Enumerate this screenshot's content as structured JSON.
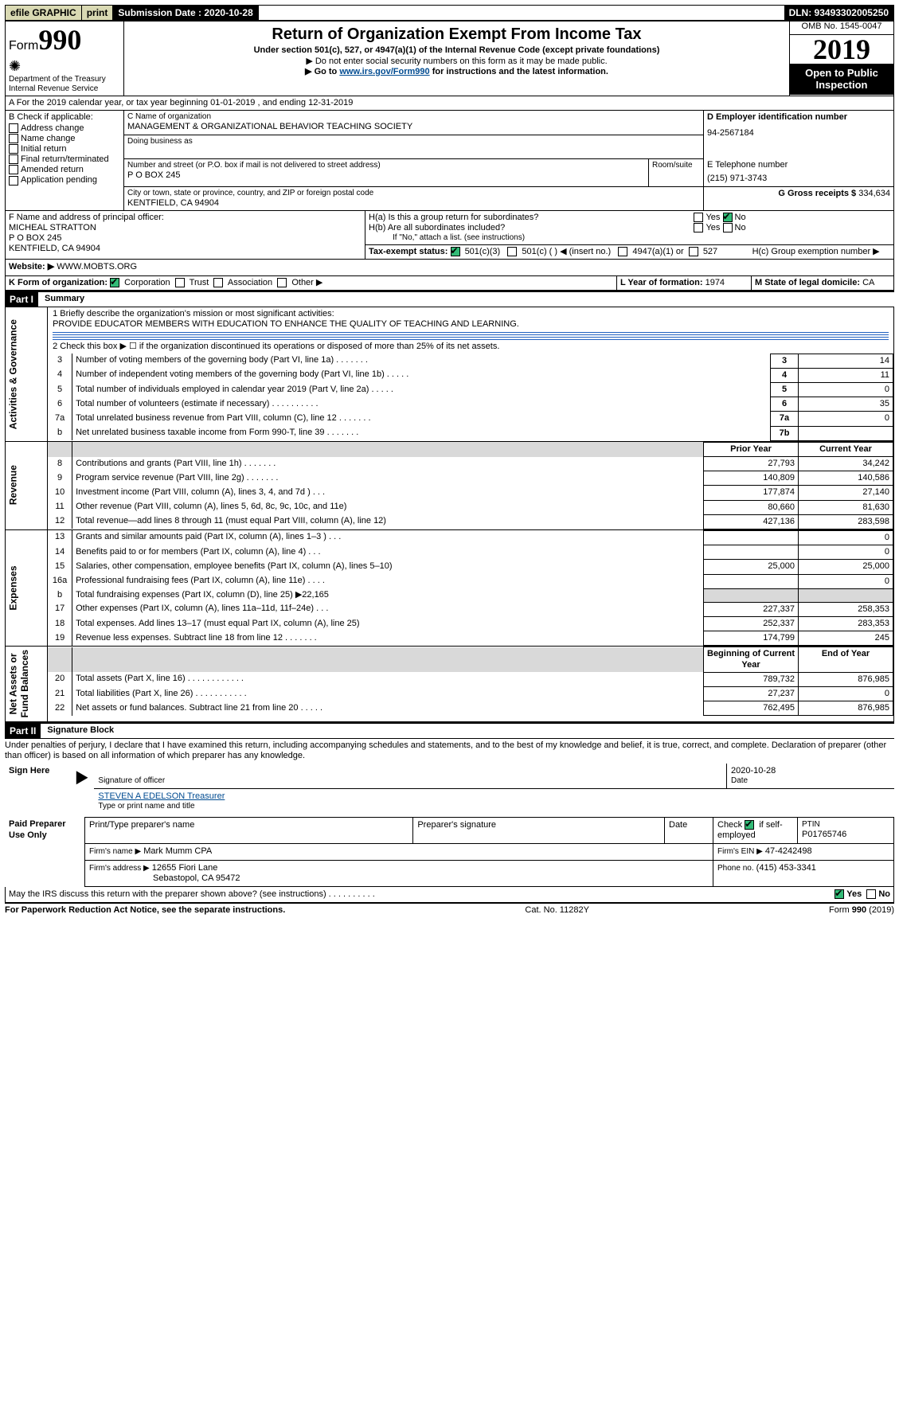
{
  "topbar": {
    "efile": "efile GRAPHIC",
    "print": "print",
    "subLabel": "Submission Date : 2020-10-28",
    "dln": "DLN: 93493302005250"
  },
  "header": {
    "formLabel": "Form",
    "form990": "990",
    "dept": "Department of the Treasury\nInternal Revenue Service",
    "title": "Return of Organization Exempt From Income Tax",
    "sub1": "Under section 501(c), 527, or 4947(a)(1) of the Internal Revenue Code (except private foundations)",
    "sub2": "▶ Do not enter social security numbers on this form as it may be made public.",
    "sub3pre": "▶ Go to ",
    "sub3link": "www.irs.gov/Form990",
    "sub3post": " for instructions and the latest information.",
    "omb": "OMB No. 1545-0047",
    "year": "2019",
    "openpub": "Open to Public Inspection"
  },
  "A": {
    "line": "A For the 2019 calendar year, or tax year beginning 01-01-2019     , and ending 12-31-2019"
  },
  "B": {
    "label": "B Check if applicable:",
    "items": [
      "Address change",
      "Name change",
      "Initial return",
      "Final return/terminated",
      "Amended return",
      "Application pending"
    ]
  },
  "C": {
    "nameLbl": "C Name of organization",
    "name": "MANAGEMENT & ORGANIZATIONAL BEHAVIOR TEACHING SOCIETY",
    "dbaLbl": "Doing business as",
    "addrLbl": "Number and street (or P.O. box if mail is not delivered to street address)",
    "roomLbl": "Room/suite",
    "addr": "P O BOX 245",
    "cityLbl": "City or town, state or province, country, and ZIP or foreign postal code",
    "city": "KENTFIELD, CA  94904"
  },
  "D": {
    "lbl": "D Employer identification number",
    "val": "94-2567184"
  },
  "E": {
    "lbl": "E Telephone number",
    "val": "(215) 971-3743"
  },
  "G": {
    "lbl": "G Gross receipts $",
    "val": "334,634"
  },
  "F": {
    "lbl": "F  Name and address of principal officer:",
    "name": "MICHEAL STRATTON",
    "addr1": "P O BOX 245",
    "addr2": "KENTFIELD, CA  94904"
  },
  "H": {
    "a": "H(a)  Is this a group return for subordinates?",
    "b": "H(b)  Are all subordinates included?",
    "bnote": "If \"No,\" attach a list. (see instructions)",
    "c": "H(c)  Group exemption number ▶",
    "yes": "Yes",
    "no": "No"
  },
  "I": {
    "lbl": "Tax-exempt status:",
    "o1": "501(c)(3)",
    "o2": "501(c) (   ) ◀ (insert no.)",
    "o3": "4947(a)(1) or",
    "o4": "527"
  },
  "J": {
    "lbl": "Website: ▶",
    "val": "WWW.MOBTS.ORG"
  },
  "K": {
    "lbl": "K Form of organization:",
    "o1": "Corporation",
    "o2": "Trust",
    "o3": "Association",
    "o4": "Other ▶"
  },
  "L": {
    "lbl": "L Year of formation:",
    "val": "1974"
  },
  "M": {
    "lbl": "M State of legal domicile:",
    "val": "CA"
  },
  "part1": {
    "hdr": "Part I",
    "title": "Summary",
    "l1lbl": "1  Briefly describe the organization's mission or most significant activities:",
    "l1val": "PROVIDE EDUCATOR MEMBERS WITH EDUCATION TO ENHANCE THE QUALITY OF TEACHING AND LEARNING.",
    "l2": "2    Check this box ▶ ☐  if the organization discontinued its operations or disposed of more than 25% of its net assets.",
    "rows_ag": [
      {
        "n": "3",
        "d": "Number of voting members of the governing body (Part VI, line 1a)  .    .    .    .    .    .    .",
        "b": "3",
        "v": "14"
      },
      {
        "n": "4",
        "d": "Number of independent voting members of the governing body (Part VI, line 1b)  .    .    .    .    .",
        "b": "4",
        "v": "11"
      },
      {
        "n": "5",
        "d": "Total number of individuals employed in calendar year 2019 (Part V, line 2a)  .    .    .    .    .",
        "b": "5",
        "v": "0"
      },
      {
        "n": "6",
        "d": "Total number of volunteers (estimate if necessary)  .    .    .    .    .    .    .    .    .    .",
        "b": "6",
        "v": "35"
      },
      {
        "n": "7a",
        "d": "Total unrelated business revenue from Part VIII, column (C), line 12  .    .    .    .    .    .    .",
        "b": "7a",
        "v": "0"
      },
      {
        "n": "b",
        "d": "Net unrelated business taxable income from Form 990-T, line 39  .    .    .    .    .    .    .",
        "b": "7b",
        "v": ""
      }
    ],
    "colhdr": {
      "py": "Prior Year",
      "cy": "Current Year"
    },
    "rows_rev": [
      {
        "n": "8",
        "d": "Contributions and grants (Part VIII, line 1h)  .    .    .    .    .    .    .",
        "py": "27,793",
        "cy": "34,242"
      },
      {
        "n": "9",
        "d": "Program service revenue (Part VIII, line 2g)  .    .    .    .    .    .    .",
        "py": "140,809",
        "cy": "140,586"
      },
      {
        "n": "10",
        "d": "Investment income (Part VIII, column (A), lines 3, 4, and 7d )  .    .    .",
        "py": "177,874",
        "cy": "27,140"
      },
      {
        "n": "11",
        "d": "Other revenue (Part VIII, column (A), lines 5, 6d, 8c, 9c, 10c, and 11e)",
        "py": "80,660",
        "cy": "81,630"
      },
      {
        "n": "12",
        "d": "Total revenue—add lines 8 through 11 (must equal Part VIII, column (A), line 12)",
        "py": "427,136",
        "cy": "283,598"
      }
    ],
    "rows_exp": [
      {
        "n": "13",
        "d": "Grants and similar amounts paid (Part IX, column (A), lines 1–3 )  .    .    .",
        "py": "",
        "cy": "0"
      },
      {
        "n": "14",
        "d": "Benefits paid to or for members (Part IX, column (A), line 4)  .    .    .",
        "py": "",
        "cy": "0"
      },
      {
        "n": "15",
        "d": "Salaries, other compensation, employee benefits (Part IX, column (A), lines 5–10)",
        "py": "25,000",
        "cy": "25,000"
      },
      {
        "n": "16a",
        "d": "Professional fundraising fees (Part IX, column (A), line 11e)  .    .    .    .",
        "py": "",
        "cy": "0"
      },
      {
        "n": "b",
        "d": "Total fundraising expenses (Part IX, column (D), line 25) ▶22,165",
        "py": "__shade__",
        "cy": "__shade__"
      },
      {
        "n": "17",
        "d": "Other expenses (Part IX, column (A), lines 11a–11d, 11f–24e)  .    .    .",
        "py": "227,337",
        "cy": "258,353"
      },
      {
        "n": "18",
        "d": "Total expenses. Add lines 13–17 (must equal Part IX, column (A), line 25)",
        "py": "252,337",
        "cy": "283,353"
      },
      {
        "n": "19",
        "d": "Revenue less expenses. Subtract line 18 from line 12  .    .    .    .    .    .    .",
        "py": "174,799",
        "cy": "245"
      }
    ],
    "colhdr2": {
      "py": "Beginning of Current Year",
      "cy": "End of Year"
    },
    "rows_na": [
      {
        "n": "20",
        "d": "Total assets (Part X, line 16)  .    .    .    .    .    .    .    .    .    .    .    .",
        "py": "789,732",
        "cy": "876,985"
      },
      {
        "n": "21",
        "d": "Total liabilities (Part X, line 26)  .    .    .    .    .    .    .    .    .    .    .",
        "py": "27,237",
        "cy": "0"
      },
      {
        "n": "22",
        "d": "Net assets or fund balances. Subtract line 21 from line 20  .    .    .    .    .",
        "py": "762,495",
        "cy": "876,985"
      }
    ],
    "vlabels": {
      "ag": "Activities & Governance",
      "rev": "Revenue",
      "exp": "Expenses",
      "na": "Net Assets or\nFund Balances"
    }
  },
  "part2": {
    "hdr": "Part II",
    "title": "Signature Block",
    "decl": "Under penalties of perjury, I declare that I have examined this return, including accompanying schedules and statements, and to the best of my knowledge and belief, it is true, correct, and complete. Declaration of preparer (other than officer) is based on all information of which preparer has any knowledge."
  },
  "sign": {
    "here": "Sign Here",
    "sigoff": "Signature of officer",
    "date": "2020-10-28",
    "dateLbl": "Date",
    "name": "STEVEN A EDELSON  Treasurer",
    "nameLbl": "Type or print name and title"
  },
  "paid": {
    "lbl": "Paid Preparer Use Only",
    "h1": "Print/Type preparer's name",
    "h2": "Preparer's signature",
    "h3": "Date",
    "h4pre": "Check",
    "h4": "if self-employed",
    "h5": "PTIN",
    "ptin": "P01765746",
    "firmLbl": "Firm's name    ▶",
    "firm": "Mark Mumm CPA",
    "einLbl": "Firm's EIN ▶",
    "ein": "47-4242498",
    "addrLbl": "Firm's address ▶",
    "addr1": "12655 Fiori Lane",
    "addr2": "Sebastopol, CA  95472",
    "phoneLbl": "Phone no.",
    "phone": "(415) 453-3341"
  },
  "discuss": {
    "q": "May the IRS discuss this return with the preparer shown above? (see instructions)   .    .    .    .    .    .    .    .    .    .",
    "yes": "Yes",
    "no": "No"
  },
  "footer": {
    "l": "For Paperwork Reduction Act Notice, see the separate instructions.",
    "c": "Cat. No. 11282Y",
    "r": "Form 990 (2019)"
  }
}
